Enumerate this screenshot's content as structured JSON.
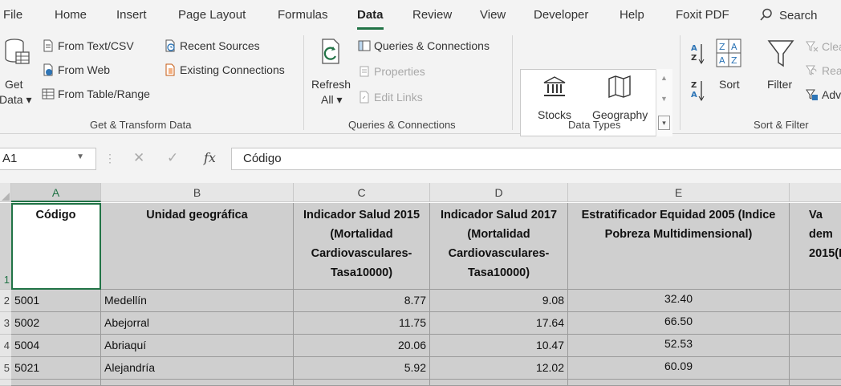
{
  "menu": {
    "file": "File",
    "home": "Home",
    "insert": "Insert",
    "page_layout": "Page Layout",
    "formulas": "Formulas",
    "data": "Data",
    "review": "Review",
    "view": "View",
    "developer": "Developer",
    "help": "Help",
    "foxit": "Foxit PDF",
    "search": "Search"
  },
  "ribbon": {
    "get_data_line1": "Get",
    "get_data_line2": "Data",
    "from_text_csv": "From Text/CSV",
    "from_web": "From Web",
    "from_table_range": "From Table/Range",
    "recent_sources": "Recent Sources",
    "existing_connections": "Existing Connections",
    "group_get_transform": "Get & Transform Data",
    "refresh_line1": "Refresh",
    "refresh_line2": "All",
    "queries_connections": "Queries & Connections",
    "properties": "Properties",
    "edit_links": "Edit Links",
    "group_queries": "Queries & Connections",
    "stocks": "Stocks",
    "geography": "Geography",
    "group_data_types": "Data Types",
    "sort": "Sort",
    "filter": "Filter",
    "clear": "Clea",
    "reapply": "Rea",
    "advanced": "Adv",
    "group_sort_filter": "Sort & Filter"
  },
  "formula_bar": {
    "name_box": "A1",
    "fx": "fx",
    "content": "Código"
  },
  "columns": [
    "A",
    "B",
    "C",
    "D",
    "E"
  ],
  "row_numbers": [
    "1",
    "2",
    "3",
    "4",
    "5"
  ],
  "headers": {
    "a": "Código",
    "b": "Unidad geográfica",
    "c": "Indicador Salud 2015 (Mortalidad Cardiovasculares-Tasa10000)",
    "d": "Indicador Salud 2017 (Mortalidad Cardiovasculares-Tasa10000)",
    "e": "Estratificador Equidad 2005 (Indice Pobreza Multidimensional)",
    "f": "Va dem 2015(P"
  },
  "rows": [
    {
      "code": "5001",
      "name": "Medellín",
      "c": "8.77",
      "d": "9.08",
      "e": "32.40"
    },
    {
      "code": "5002",
      "name": "Abejorral",
      "c": "11.75",
      "d": "17.64",
      "e": "66.50"
    },
    {
      "code": "5004",
      "name": "Abriaquí",
      "c": "20.06",
      "d": "10.47",
      "e": "52.53"
    },
    {
      "code": "5021",
      "name": "Alejandría",
      "c": "5.92",
      "d": "12.02",
      "e": "60.09"
    }
  ],
  "colors": {
    "accent": "#217346",
    "cell_bg": "#cfcfcf"
  }
}
